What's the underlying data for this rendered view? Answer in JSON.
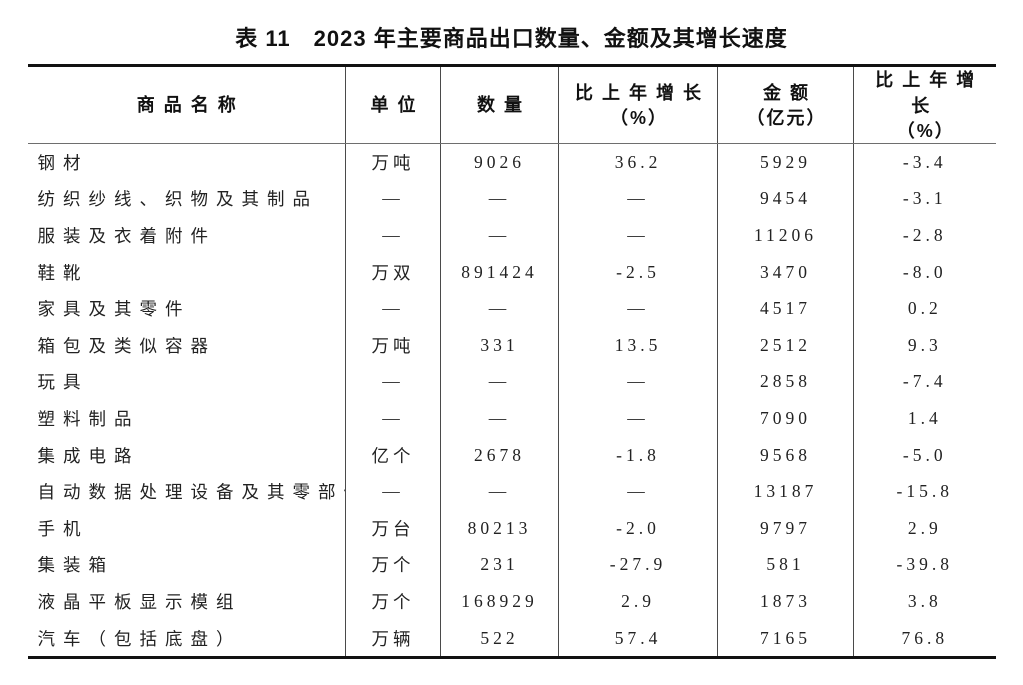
{
  "title": "表 11　2023 年主要商品出口数量、金额及其增长速度",
  "table": {
    "columns": [
      {
        "label": "商品名称"
      },
      {
        "label": "单位"
      },
      {
        "label": "数量"
      },
      {
        "label": "比上年增长",
        "sub": "（%）"
      },
      {
        "label": "金额",
        "sub": "（亿元）"
      },
      {
        "label": "比上年增长",
        "sub": "（%）"
      }
    ],
    "rows": [
      [
        "钢材",
        "万吨",
        "9026",
        "36.2",
        "5929",
        "-3.4"
      ],
      [
        "纺织纱线、织物及其制品",
        "—",
        "—",
        "—",
        "9454",
        "-3.1"
      ],
      [
        "服装及衣着附件",
        "—",
        "—",
        "—",
        "11206",
        "-2.8"
      ],
      [
        "鞋靴",
        "万双",
        "891424",
        "-2.5",
        "3470",
        "-8.0"
      ],
      [
        "家具及其零件",
        "—",
        "—",
        "—",
        "4517",
        "0.2"
      ],
      [
        "箱包及类似容器",
        "万吨",
        "331",
        "13.5",
        "2512",
        "9.3"
      ],
      [
        "玩具",
        "—",
        "—",
        "—",
        "2858",
        "-7.4"
      ],
      [
        "塑料制品",
        "—",
        "—",
        "—",
        "7090",
        "1.4"
      ],
      [
        "集成电路",
        "亿个",
        "2678",
        "-1.8",
        "9568",
        "-5.0"
      ],
      [
        "自动数据处理设备及其零部件",
        "—",
        "—",
        "—",
        "13187",
        "-15.8"
      ],
      [
        "手机",
        "万台",
        "80213",
        "-2.0",
        "9797",
        "2.9"
      ],
      [
        "集装箱",
        "万个",
        "231",
        "-27.9",
        "581",
        "-39.8"
      ],
      [
        "液晶平板显示模组",
        "万个",
        "168929",
        "2.9",
        "1873",
        "3.8"
      ],
      [
        "汽车（包括底盘）",
        "万辆",
        "522",
        "57.4",
        "7165",
        "76.8"
      ]
    ]
  },
  "colors": {
    "text": "#222222",
    "heading_text": "#111111",
    "border_heavy": "#111111",
    "border_light": "#4a4a4a",
    "header_rule": "#6e6e6e",
    "background": "#ffffff"
  }
}
